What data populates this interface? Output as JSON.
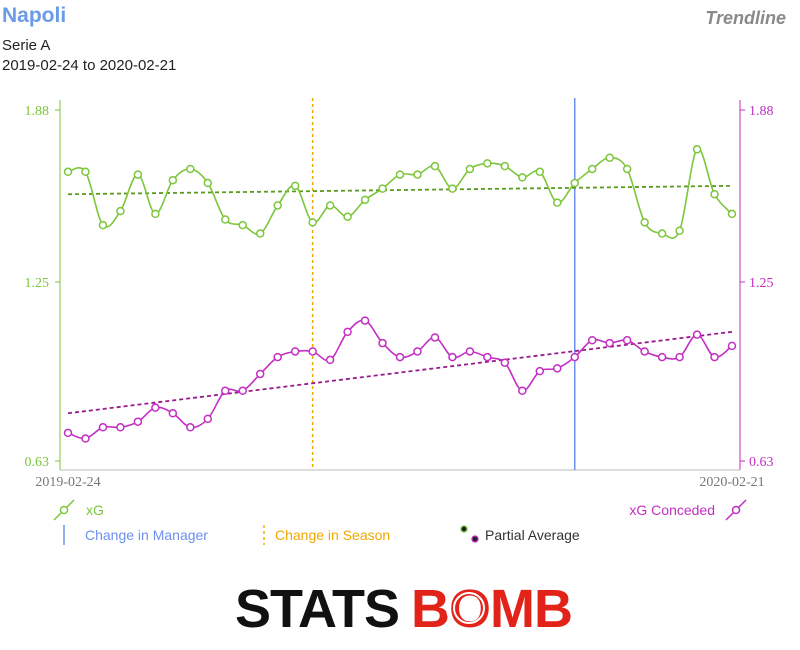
{
  "header": {
    "team": "Napoli",
    "competition": "Serie A",
    "date_range": "2019-02-24 to 2020-02-21",
    "badge": "Trendline"
  },
  "colors": {
    "xg": "#7cc63b",
    "xg_trend": "#5a9a1f",
    "conceded": "#c22fc2",
    "conceded_trend": "#9a1a8c",
    "manager_line": "#6d8ff0",
    "season_line": "#f0a800",
    "logo_black": "#111111",
    "logo_red": "#e2231a"
  },
  "legend": {
    "xg": "xG",
    "conceded": "xG Conceded",
    "manager": "Change in Manager",
    "season": "Change in Season",
    "partial": "Partial Average"
  },
  "logo": {
    "left": "STATS",
    "right": "BOMB"
  },
  "chart_data": {
    "type": "line",
    "x_start_label": "2019-02-24",
    "x_end_label": "2020-02-21",
    "ylim": [
      0.63,
      1.88
    ],
    "yticks": [
      "1.88",
      "1.25",
      "0.63"
    ],
    "grid": false,
    "manager_change_index": 29,
    "season_change_index": 14,
    "series": [
      {
        "name": "xG",
        "axis": "left",
        "values": [
          1.66,
          1.66,
          1.47,
          1.52,
          1.65,
          1.51,
          1.63,
          1.67,
          1.62,
          1.49,
          1.47,
          1.44,
          1.54,
          1.61,
          1.48,
          1.54,
          1.5,
          1.56,
          1.6,
          1.65,
          1.65,
          1.68,
          1.6,
          1.67,
          1.69,
          1.68,
          1.64,
          1.66,
          1.55,
          1.62,
          1.67,
          1.71,
          1.67,
          1.48,
          1.44,
          1.45,
          1.74,
          1.58,
          1.51
        ],
        "trend": [
          1.58,
          1.61
        ]
      },
      {
        "name": "xG Conceded",
        "axis": "right",
        "values": [
          0.73,
          0.71,
          0.75,
          0.75,
          0.77,
          0.82,
          0.8,
          0.75,
          0.78,
          0.88,
          0.88,
          0.94,
          1.0,
          1.02,
          1.02,
          0.99,
          1.09,
          1.13,
          1.05,
          1.0,
          1.02,
          1.07,
          1.0,
          1.02,
          1.0,
          0.98,
          0.88,
          0.95,
          0.96,
          1.0,
          1.06,
          1.05,
          1.06,
          1.02,
          1.0,
          1.0,
          1.08,
          1.0,
          1.04
        ],
        "trend": [
          0.8,
          1.09
        ]
      }
    ]
  }
}
